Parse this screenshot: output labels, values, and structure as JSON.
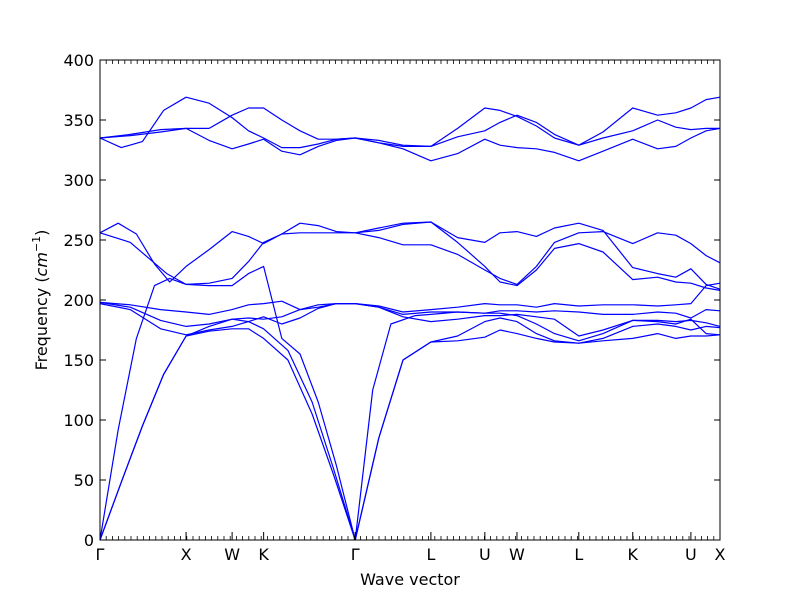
{
  "chart_data": {
    "type": "line",
    "title": "",
    "xlabel": "Wave vector",
    "ylabel_text": "Frequency (",
    "ylabel_unit_base": "cm",
    "ylabel_unit_exp": "−1",
    "ylabel_close": ")",
    "ylim": [
      0,
      400
    ],
    "yticks": [
      0,
      50,
      100,
      150,
      200,
      250,
      300,
      350,
      400
    ],
    "grid": false,
    "line_color": "#0000ff",
    "xlim": [
      0,
      10.23
    ],
    "high_symmetry_points": [
      {
        "label": "Γ",
        "x": 0.0
      },
      {
        "label": "X",
        "x": 1.42
      },
      {
        "label": "W",
        "x": 2.18
      },
      {
        "label": "K",
        "x": 2.7
      },
      {
        "label": "Γ",
        "x": 4.21
      },
      {
        "label": "L",
        "x": 5.46
      },
      {
        "label": "U",
        "x": 6.35
      },
      {
        "label": "W",
        "x": 6.88
      },
      {
        "label": "L",
        "x": 7.9
      },
      {
        "label": "K",
        "x": 8.79
      },
      {
        "label": "U",
        "x": 9.75
      },
      {
        "label": "X",
        "x": 10.23
      }
    ],
    "series": [
      {
        "x": [
          0,
          0.35,
          0.7,
          1.05,
          1.42,
          1.8,
          2.18,
          2.45,
          2.7,
          3.1,
          3.5,
          3.85,
          4.21
        ],
        "y": [
          0,
          48,
          95,
          138,
          170,
          174,
          176,
          176,
          168,
          150,
          105,
          55,
          0
        ]
      },
      {
        "x": [
          0,
          0.35,
          0.7,
          1.05,
          1.42,
          1.8,
          2.18,
          2.45,
          2.7,
          3.1,
          3.5,
          3.85,
          4.21
        ],
        "y": [
          0,
          48,
          95,
          138,
          170,
          178,
          184,
          182,
          176,
          158,
          115,
          60,
          0
        ]
      },
      {
        "x": [
          0,
          0.3,
          0.6,
          0.9,
          1.15,
          1.42,
          1.8,
          2.18,
          2.45,
          2.7,
          3.0,
          3.3,
          3.6,
          3.9,
          4.21
        ],
        "y": [
          0,
          92,
          168,
          212,
          218,
          213,
          212,
          212,
          222,
          228,
          168,
          155,
          115,
          62,
          0
        ]
      },
      {
        "x": [
          0,
          0.5,
          1.0,
          1.42,
          1.8,
          2.18,
          2.45,
          2.7,
          3.0,
          3.3,
          3.6,
          3.9,
          4.21
        ],
        "y": [
          197,
          192,
          176,
          171,
          175,
          178,
          182,
          186,
          180,
          185,
          193,
          197,
          197
        ]
      },
      {
        "x": [
          0,
          0.5,
          1.0,
          1.42,
          1.8,
          2.18,
          2.45,
          2.7,
          3.0,
          3.3,
          3.6,
          3.9,
          4.21
        ],
        "y": [
          198,
          194,
          183,
          178,
          180,
          184,
          185,
          184,
          186,
          192,
          196,
          197,
          197
        ]
      },
      {
        "x": [
          0,
          0.5,
          1.0,
          1.42,
          1.8,
          2.18,
          2.45,
          2.7,
          3.0,
          3.3,
          3.6,
          3.9,
          4.21
        ],
        "y": [
          198,
          196,
          192,
          190,
          188,
          192,
          196,
          197,
          199,
          192,
          194,
          197,
          197
        ]
      },
      {
        "x": [
          0,
          0.5,
          1.1,
          1.42,
          1.8,
          2.18,
          2.45,
          2.7,
          3.0,
          3.3,
          3.6,
          3.9,
          4.21
        ],
        "y": [
          256,
          248,
          222,
          213,
          214,
          218,
          232,
          248,
          255,
          256,
          256,
          256,
          256
        ]
      },
      {
        "x": [
          0,
          0.3,
          0.6,
          0.9,
          1.15,
          1.42,
          1.8,
          2.18,
          2.45,
          2.7,
          3.0,
          3.3,
          3.6,
          3.9,
          4.21
        ],
        "y": [
          256,
          264,
          255,
          230,
          215,
          228,
          242,
          257,
          253,
          247,
          255,
          264,
          262,
          257,
          256
        ]
      },
      {
        "x": [
          0,
          0.5,
          1.0,
          1.42,
          1.8,
          2.18,
          2.45,
          2.7,
          3.0,
          3.3,
          3.6,
          3.9,
          4.21
        ],
        "y": [
          335,
          337,
          340,
          343,
          343,
          354,
          360,
          360,
          350,
          341,
          334,
          334,
          335
        ]
      },
      {
        "x": [
          0,
          0.35,
          0.7,
          1.05,
          1.42,
          1.8,
          2.18,
          2.45,
          2.7,
          3.0,
          3.3,
          3.6,
          3.9,
          4.21
        ],
        "y": [
          335,
          327,
          332,
          358,
          369,
          364,
          352,
          341,
          335,
          327,
          327,
          330,
          334,
          335
        ]
      },
      {
        "x": [
          0,
          0.5,
          1.0,
          1.42,
          1.8,
          2.18,
          2.45,
          2.7,
          3.0,
          3.3,
          3.6,
          3.9,
          4.21
        ],
        "y": [
          335,
          338,
          342,
          343,
          333,
          326,
          330,
          334,
          324,
          321,
          328,
          333,
          335
        ]
      },
      {
        "x": [
          4.21,
          4.6,
          5.0,
          5.46,
          5.9,
          6.35,
          6.6,
          6.88,
          7.2,
          7.5,
          7.9,
          8.3,
          8.79,
          9.2,
          9.5,
          9.75,
          10.0,
          10.23
        ],
        "y": [
          0,
          85,
          150,
          165,
          166,
          169,
          175,
          172,
          168,
          165,
          164,
          166,
          168,
          172,
          168,
          170,
          170,
          171
        ]
      },
      {
        "x": [
          4.21,
          4.6,
          5.0,
          5.46,
          5.9,
          6.35,
          6.6,
          6.88,
          7.2,
          7.5,
          7.9,
          8.3,
          8.79,
          9.2,
          9.5,
          9.75,
          10.0,
          10.23
        ],
        "y": [
          0,
          85,
          150,
          165,
          170,
          182,
          185,
          182,
          172,
          166,
          164,
          168,
          178,
          180,
          178,
          175,
          178,
          177
        ]
      },
      {
        "x": [
          4.21,
          4.5,
          4.8,
          5.2,
          5.46,
          5.9,
          6.35,
          6.6,
          6.88,
          7.2,
          7.5,
          7.9,
          8.3,
          8.79,
          9.2,
          9.5,
          9.75,
          10.0,
          10.23
        ],
        "y": [
          0,
          125,
          180,
          187,
          188,
          190,
          189,
          189,
          187,
          180,
          172,
          166,
          172,
          183,
          182,
          180,
          184,
          172,
          171
        ]
      },
      {
        "x": [
          4.21,
          4.6,
          5.0,
          5.46,
          5.9,
          6.35,
          6.6,
          6.88,
          7.2,
          7.5,
          7.9,
          8.3,
          8.79,
          9.2,
          9.5,
          9.75,
          10.0,
          10.23
        ],
        "y": [
          197,
          194,
          186,
          182,
          184,
          187,
          187,
          188,
          186,
          184,
          170,
          175,
          183,
          183,
          182,
          183,
          181,
          178
        ]
      },
      {
        "x": [
          4.21,
          4.6,
          5.0,
          5.46,
          5.9,
          6.35,
          6.6,
          6.88,
          7.2,
          7.5,
          7.9,
          8.3,
          8.79,
          9.2,
          9.5,
          9.75,
          10.0,
          10.23
        ],
        "y": [
          197,
          194,
          188,
          190,
          190,
          189,
          191,
          191,
          190,
          191,
          190,
          188,
          188,
          190,
          189,
          185,
          192,
          191
        ]
      },
      {
        "x": [
          4.21,
          4.6,
          5.0,
          5.46,
          5.9,
          6.35,
          6.6,
          6.88,
          7.2,
          7.5,
          7.9,
          8.3,
          8.79,
          9.2,
          9.5,
          9.75,
          10.0,
          10.23
        ],
        "y": [
          197,
          195,
          190,
          192,
          194,
          197,
          196,
          196,
          194,
          197,
          195,
          196,
          196,
          195,
          196,
          197,
          212,
          214
        ]
      },
      {
        "x": [
          4.21,
          4.6,
          5.0,
          5.46,
          5.9,
          6.35,
          6.6,
          6.88,
          7.2,
          7.5,
          7.9,
          8.3,
          8.79,
          9.2,
          9.5,
          9.75,
          10.0,
          10.23
        ],
        "y": [
          256,
          252,
          246,
          246,
          238,
          225,
          218,
          213,
          228,
          248,
          256,
          257,
          247,
          256,
          254,
          247,
          237,
          231
        ]
      },
      {
        "x": [
          4.21,
          4.6,
          5.0,
          5.46,
          5.9,
          6.35,
          6.6,
          6.88,
          7.2,
          7.5,
          7.9,
          8.3,
          8.79,
          9.2,
          9.5,
          9.75,
          10.0,
          10.23
        ],
        "y": [
          256,
          260,
          264,
          265,
          252,
          248,
          256,
          257,
          253,
          260,
          264,
          258,
          227,
          222,
          219,
          226,
          213,
          209
        ]
      },
      {
        "x": [
          4.21,
          4.6,
          5.0,
          5.46,
          5.9,
          6.35,
          6.6,
          6.88,
          7.2,
          7.5,
          7.9,
          8.3,
          8.79,
          9.2,
          9.5,
          9.75,
          10.0,
          10.23
        ],
        "y": [
          256,
          258,
          263,
          265,
          248,
          228,
          215,
          212,
          225,
          243,
          247,
          240,
          217,
          219,
          215,
          214,
          210,
          208
        ]
      },
      {
        "x": [
          4.21,
          4.6,
          5.0,
          5.46,
          5.9,
          6.35,
          6.6,
          6.88,
          7.2,
          7.5,
          7.9,
          8.3,
          8.79,
          9.2,
          9.5,
          9.75,
          10.0,
          10.23
        ],
        "y": [
          335,
          333,
          329,
          328,
          343,
          360,
          358,
          353,
          345,
          335,
          329,
          340,
          360,
          354,
          356,
          360,
          367,
          369
        ]
      },
      {
        "x": [
          4.21,
          4.6,
          5.0,
          5.46,
          5.9,
          6.35,
          6.6,
          6.88,
          7.2,
          7.5,
          7.9,
          8.3,
          8.79,
          9.2,
          9.5,
          9.75,
          10.0,
          10.23
        ],
        "y": [
          335,
          331,
          328,
          328,
          336,
          341,
          348,
          354,
          348,
          338,
          329,
          335,
          341,
          350,
          344,
          342,
          343,
          343
        ]
      },
      {
        "x": [
          4.21,
          4.6,
          5.0,
          5.46,
          5.9,
          6.35,
          6.6,
          6.88,
          7.2,
          7.5,
          7.9,
          8.3,
          8.79,
          9.2,
          9.5,
          9.75,
          10.0,
          10.23
        ],
        "y": [
          335,
          331,
          326,
          316,
          322,
          334,
          329,
          327,
          326,
          323,
          316,
          324,
          334,
          326,
          328,
          335,
          341,
          343
        ]
      }
    ]
  }
}
